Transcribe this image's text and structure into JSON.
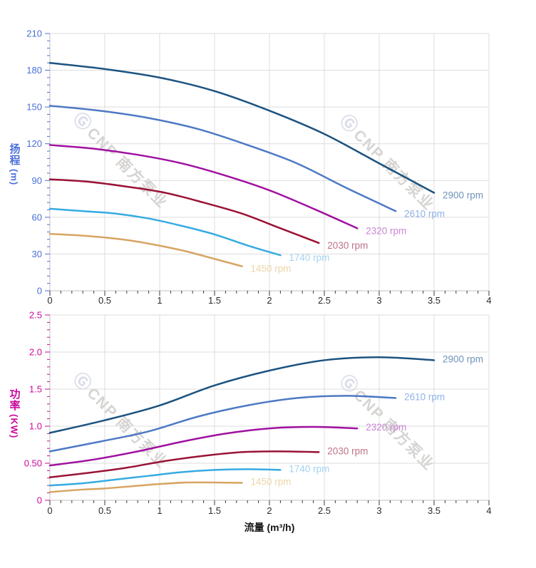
{
  "watermark": {
    "logo_icon": "Ⓖ",
    "text": "CNP 南方泵业"
  },
  "axes": {
    "head_axis_title": "扬程",
    "head_axis_unit": "(m)",
    "power_axis_title": "功率",
    "power_axis_unit": "(KW)",
    "flow_axis_title": "流量 (m³/h)"
  },
  "colors": {
    "grid": "#dcdcdc",
    "axis_line": "#c2c2c2",
    "x_tick_mark": "#3a3a3a",
    "x_tick_text": "#2b2b2b",
    "head_axis": "#4a6fd8",
    "power_axis": "#cb0a9c",
    "watermark": "#d6d4d2"
  },
  "chart_data": [
    {
      "id": "head",
      "type": "line",
      "title": "",
      "xlabel": "流量 (m³/h)",
      "ylabel": "扬程 (m)",
      "xlim": [
        0,
        4
      ],
      "ylim": [
        0,
        210
      ],
      "grid": true,
      "legend_position": "end-of-curve",
      "x_tick_labels": [
        "0",
        "0.5",
        "1",
        "1.5",
        "2",
        "2.5",
        "3",
        "3.5",
        "4"
      ],
      "y_tick_labels": [
        "0",
        "30",
        "60",
        "90",
        "120",
        "150",
        "180",
        "210"
      ],
      "x_minor_per_major": 5,
      "y_minor_per_major": 5,
      "y_axis_color": "#4a6fd8",
      "series": [
        {
          "name": "2900 rpm",
          "color": "#1c5380",
          "label_color": "#7293ba",
          "x": [
            0,
            0.5,
            1,
            1.5,
            2,
            2.5,
            3,
            3.5
          ],
          "y": [
            186,
            181,
            174,
            163,
            147,
            128,
            104,
            80
          ]
        },
        {
          "name": "2610 rpm",
          "color": "#4d79c4",
          "label_color": "#8fb2e8",
          "x": [
            0,
            0.45,
            0.9,
            1.35,
            1.8,
            2.25,
            2.7,
            3.15
          ],
          "y": [
            151,
            147,
            141,
            132,
            119,
            104,
            84,
            65
          ]
        },
        {
          "name": "2320 rpm",
          "color": "#a011a0",
          "label_color": "#cb85d6",
          "x": [
            0,
            0.4,
            0.8,
            1.2,
            1.6,
            2.0,
            2.4,
            2.8
          ],
          "y": [
            119,
            116,
            111,
            104,
            94,
            82,
            67,
            51
          ]
        },
        {
          "name": "2030 rpm",
          "color": "#9a1335",
          "label_color": "#bd7287",
          "x": [
            0,
            0.35,
            0.7,
            1.05,
            1.4,
            1.75,
            2.1,
            2.45
          ],
          "y": [
            91,
            89,
            85,
            80,
            72,
            63,
            51,
            39
          ]
        },
        {
          "name": "1740 rpm",
          "color": "#36abe1",
          "label_color": "#a3d3f1",
          "x": [
            0,
            0.3,
            0.6,
            0.9,
            1.2,
            1.5,
            1.8,
            2.1
          ],
          "y": [
            67,
            65,
            63,
            59,
            53,
            46,
            37,
            29
          ]
        },
        {
          "name": "1450 rpm",
          "color": "#d7a462",
          "label_color": "#edd6a9",
          "x": [
            0,
            0.25,
            0.5,
            0.75,
            1.0,
            1.25,
            1.5,
            1.75
          ],
          "y": [
            46.5,
            45.3,
            43.5,
            40.8,
            36.8,
            32,
            26,
            20
          ]
        }
      ]
    },
    {
      "id": "power",
      "type": "line",
      "title": "",
      "xlabel": "流量 (m³/h)",
      "ylabel": "功率 (KW)",
      "xlim": [
        0,
        4
      ],
      "ylim": [
        0,
        2.5
      ],
      "grid": true,
      "legend_position": "end-of-curve",
      "x_tick_labels": [
        "0",
        "0.5",
        "1",
        "1.5",
        "2",
        "2.5",
        "3",
        "3.5",
        "4"
      ],
      "y_tick_labels": [
        "0",
        "0.50",
        "1.0",
        "1.5",
        "2.0",
        "2.5"
      ],
      "x_minor_per_major": 5,
      "y_minor_per_major": 5,
      "y_axis_color": "#cb0a9c",
      "series": [
        {
          "name": "2900 rpm",
          "color": "#1c5380",
          "label_color": "#7293ba",
          "x": [
            0,
            0.5,
            1,
            1.5,
            2,
            2.5,
            3,
            3.5
          ],
          "y": [
            0.91,
            1.08,
            1.28,
            1.55,
            1.75,
            1.89,
            1.93,
            1.89
          ]
        },
        {
          "name": "2610 rpm",
          "color": "#4d79c4",
          "label_color": "#8fb2e8",
          "x": [
            0,
            0.45,
            0.9,
            1.35,
            1.8,
            2.25,
            2.7,
            3.15
          ],
          "y": [
            0.66,
            0.79,
            0.93,
            1.13,
            1.28,
            1.38,
            1.41,
            1.38
          ]
        },
        {
          "name": "2320 rpm",
          "color": "#a011a0",
          "label_color": "#cb85d6",
          "x": [
            0,
            0.4,
            0.8,
            1.2,
            1.6,
            2.0,
            2.4,
            2.8
          ],
          "y": [
            0.47,
            0.55,
            0.66,
            0.79,
            0.9,
            0.97,
            0.99,
            0.97
          ]
        },
        {
          "name": "2030 rpm",
          "color": "#9a1335",
          "label_color": "#bd7287",
          "x": [
            0,
            0.35,
            0.7,
            1.05,
            1.4,
            1.75,
            2.1,
            2.45
          ],
          "y": [
            0.31,
            0.37,
            0.44,
            0.53,
            0.6,
            0.65,
            0.66,
            0.65
          ]
        },
        {
          "name": "1740 rpm",
          "color": "#36abe1",
          "label_color": "#a3d3f1",
          "x": [
            0,
            0.3,
            0.6,
            0.9,
            1.2,
            1.5,
            1.8,
            2.1
          ],
          "y": [
            0.2,
            0.23,
            0.28,
            0.33,
            0.38,
            0.41,
            0.42,
            0.41
          ]
        },
        {
          "name": "1450 rpm",
          "color": "#d7a462",
          "label_color": "#edd6a9",
          "x": [
            0,
            0.25,
            0.5,
            0.75,
            1.0,
            1.25,
            1.5,
            1.75
          ],
          "y": [
            0.11,
            0.14,
            0.16,
            0.19,
            0.22,
            0.24,
            0.24,
            0.235
          ]
        }
      ]
    }
  ]
}
